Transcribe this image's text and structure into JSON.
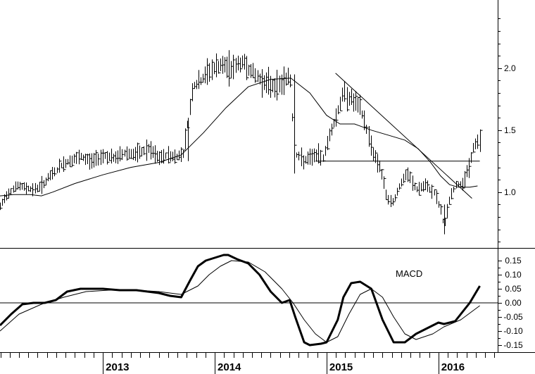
{
  "chart_data": [
    {
      "type": "ohlc",
      "panel": "price",
      "y_ticks": [
        "2.0",
        "1.5",
        "1.0"
      ],
      "y_tick_values": [
        2.0,
        1.5,
        1.0
      ],
      "ylim": [
        0.55,
        2.55
      ],
      "xlim": [
        2012.08,
        2016.53
      ],
      "x_labels": [
        "2013",
        "2014",
        "2015",
        "2016"
      ],
      "x_label_values": [
        2013.0,
        2014.0,
        2015.0,
        2016.0
      ],
      "price_path": [
        [
          2012.08,
          0.88
        ],
        [
          2012.14,
          0.98
        ],
        [
          2012.22,
          1.05
        ],
        [
          2012.3,
          1.04
        ],
        [
          2012.38,
          1.02
        ],
        [
          2012.46,
          1.06
        ],
        [
          2012.55,
          1.15
        ],
        [
          2012.63,
          1.22
        ],
        [
          2012.7,
          1.25
        ],
        [
          2012.8,
          1.28
        ],
        [
          2012.9,
          1.25
        ],
        [
          2013.0,
          1.3
        ],
        [
          2013.1,
          1.27
        ],
        [
          2013.2,
          1.32
        ],
        [
          2013.3,
          1.3
        ],
        [
          2013.4,
          1.35
        ],
        [
          2013.5,
          1.27
        ],
        [
          2013.58,
          1.3
        ],
        [
          2013.65,
          1.28
        ],
        [
          2013.72,
          1.32
        ],
        [
          2013.75,
          1.5
        ],
        [
          2013.8,
          1.85
        ],
        [
          2013.88,
          1.9
        ],
        [
          2013.95,
          1.98
        ],
        [
          2014.05,
          2.02
        ],
        [
          2014.15,
          2.0
        ],
        [
          2014.25,
          2.05
        ],
        [
          2014.35,
          1.95
        ],
        [
          2014.45,
          1.88
        ],
        [
          2014.55,
          1.85
        ],
        [
          2014.62,
          1.9
        ],
        [
          2014.67,
          1.95
        ],
        [
          2014.7,
          1.5
        ],
        [
          2014.73,
          1.3
        ],
        [
          2014.8,
          1.25
        ],
        [
          2014.9,
          1.3
        ],
        [
          2014.97,
          1.28
        ],
        [
          2015.02,
          1.45
        ],
        [
          2015.08,
          1.6
        ],
        [
          2015.15,
          1.8
        ],
        [
          2015.22,
          1.75
        ],
        [
          2015.3,
          1.68
        ],
        [
          2015.36,
          1.5
        ],
        [
          2015.42,
          1.3
        ],
        [
          2015.48,
          1.2
        ],
        [
          2015.53,
          0.98
        ],
        [
          2015.58,
          0.9
        ],
        [
          2015.65,
          1.05
        ],
        [
          2015.72,
          1.15
        ],
        [
          2015.8,
          1.02
        ],
        [
          2015.88,
          1.05
        ],
        [
          2015.96,
          1.0
        ],
        [
          2016.02,
          0.85
        ],
        [
          2016.05,
          0.72
        ],
        [
          2016.1,
          0.95
        ],
        [
          2016.15,
          1.05
        ],
        [
          2016.22,
          1.08
        ],
        [
          2016.27,
          1.2
        ],
        [
          2016.32,
          1.38
        ],
        [
          2016.37,
          1.42
        ]
      ],
      "moving_average": [
        [
          2012.08,
          0.97
        ],
        [
          2012.2,
          0.98
        ],
        [
          2012.35,
          0.98
        ],
        [
          2012.45,
          0.97
        ],
        [
          2012.55,
          1.0
        ],
        [
          2012.75,
          1.07
        ],
        [
          2013.0,
          1.14
        ],
        [
          2013.25,
          1.2
        ],
        [
          2013.5,
          1.24
        ],
        [
          2013.7,
          1.3
        ],
        [
          2013.9,
          1.48
        ],
        [
          2014.1,
          1.68
        ],
        [
          2014.3,
          1.85
        ],
        [
          2014.5,
          1.91
        ],
        [
          2014.68,
          1.92
        ],
        [
          2014.85,
          1.8
        ],
        [
          2015.0,
          1.62
        ],
        [
          2015.12,
          1.55
        ],
        [
          2015.25,
          1.55
        ],
        [
          2015.4,
          1.5
        ],
        [
          2015.55,
          1.46
        ],
        [
          2015.7,
          1.42
        ],
        [
          2015.82,
          1.35
        ],
        [
          2015.93,
          1.24
        ],
        [
          2016.02,
          1.13
        ],
        [
          2016.1,
          1.06
        ],
        [
          2016.18,
          1.04
        ],
        [
          2016.28,
          1.04
        ],
        [
          2016.35,
          1.05
        ]
      ],
      "horizontal_line": {
        "y": 1.25,
        "x": [
          2014.9,
          2016.37
        ]
      },
      "trend_line": {
        "points": [
          [
            2015.08,
            1.96
          ],
          [
            2016.3,
            0.95
          ]
        ]
      }
    },
    {
      "type": "line",
      "panel": "indicator",
      "annotation": "MACD",
      "y_ticks": [
        "0.15",
        "0.10",
        "0.05",
        "0.00",
        "-0.05",
        "-0.10",
        "-0.15"
      ],
      "y_tick_values": [
        0.15,
        0.1,
        0.05,
        0.0,
        -0.05,
        -0.1,
        -0.15
      ],
      "ylim": [
        -0.175,
        0.19
      ],
      "zero_line": 0.0,
      "series": [
        {
          "role": "macd",
          "x": [
            2012.08,
            2012.18,
            2012.28,
            2012.38,
            2012.48,
            2012.58,
            2012.68,
            2012.8,
            2013.0,
            2013.15,
            2013.3,
            2013.5,
            2013.6,
            2013.7,
            2013.78,
            2013.85,
            2013.92,
            2014.0,
            2014.08,
            2014.12,
            2014.2,
            2014.3,
            2014.4,
            2014.5,
            2014.6,
            2014.67,
            2014.72,
            2014.8,
            2014.85,
            2014.95,
            2015.0,
            2015.1,
            2015.15,
            2015.22,
            2015.3,
            2015.4,
            2015.5,
            2015.6,
            2015.7,
            2015.8,
            2015.9,
            2016.0,
            2016.05,
            2016.15,
            2016.22,
            2016.28,
            2016.37
          ],
          "y": [
            -0.08,
            -0.04,
            -0.005,
            0.0,
            0.0,
            0.01,
            0.04,
            0.05,
            0.05,
            0.045,
            0.045,
            0.035,
            0.025,
            0.02,
            0.08,
            0.13,
            0.15,
            0.16,
            0.17,
            0.17,
            0.155,
            0.14,
            0.1,
            0.04,
            0.0,
            0.01,
            -0.05,
            -0.14,
            -0.15,
            -0.145,
            -0.14,
            -0.06,
            0.02,
            0.07,
            0.075,
            0.05,
            -0.06,
            -0.14,
            -0.14,
            -0.11,
            -0.09,
            -0.07,
            -0.075,
            -0.065,
            -0.03,
            0.0,
            0.06
          ]
        },
        {
          "role": "signal",
          "x": [
            2012.08,
            2012.25,
            2012.45,
            2012.65,
            2012.85,
            2013.05,
            2013.3,
            2013.5,
            2013.7,
            2013.85,
            2013.95,
            2014.05,
            2014.15,
            2014.3,
            2014.45,
            2014.6,
            2014.7,
            2014.8,
            2014.9,
            2015.0,
            2015.1,
            2015.2,
            2015.3,
            2015.4,
            2015.5,
            2015.6,
            2015.7,
            2015.8,
            2015.95,
            2016.05,
            2016.2,
            2016.37
          ],
          "y": [
            -0.1,
            -0.04,
            -0.005,
            0.02,
            0.04,
            0.045,
            0.045,
            0.04,
            0.03,
            0.06,
            0.1,
            0.13,
            0.15,
            0.145,
            0.11,
            0.05,
            0.0,
            -0.06,
            -0.11,
            -0.14,
            -0.12,
            -0.04,
            0.03,
            0.05,
            0.02,
            -0.05,
            -0.11,
            -0.13,
            -0.11,
            -0.085,
            -0.06,
            -0.01
          ]
        }
      ]
    }
  ]
}
